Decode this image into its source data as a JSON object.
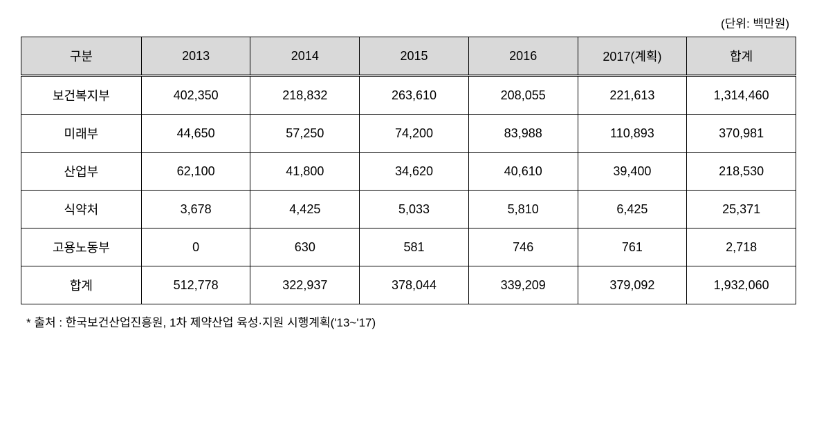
{
  "unit_label": "(단위: 백만원)",
  "table": {
    "columns": [
      "구분",
      "2013",
      "2014",
      "2015",
      "2016",
      "2017(계획)",
      "합계"
    ],
    "rows": [
      [
        "보건복지부",
        "402,350",
        "218,832",
        "263,610",
        "208,055",
        "221,613",
        "1,314,460"
      ],
      [
        "미래부",
        "44,650",
        "57,250",
        "74,200",
        "83,988",
        "110,893",
        "370,981"
      ],
      [
        "산업부",
        "62,100",
        "41,800",
        "34,620",
        "40,610",
        "39,400",
        "218,530"
      ],
      [
        "식약처",
        "3,678",
        "4,425",
        "5,033",
        "5,810",
        "6,425",
        "25,371"
      ],
      [
        "고용노동부",
        "0",
        "630",
        "581",
        "746",
        "761",
        "2,718"
      ],
      [
        "합계",
        "512,778",
        "322,937",
        "378,044",
        "339,209",
        "379,092",
        "1,932,060"
      ]
    ],
    "header_bg": "#d9d9d9",
    "border_color": "#000000",
    "cell_fontsize": 18,
    "cell_padding": "14px 8px",
    "text_align": "center"
  },
  "source_note": "* 출처 : 한국보건산업진흥원, 1차 제약산업 육성·지원 시행계획('13~'17)"
}
